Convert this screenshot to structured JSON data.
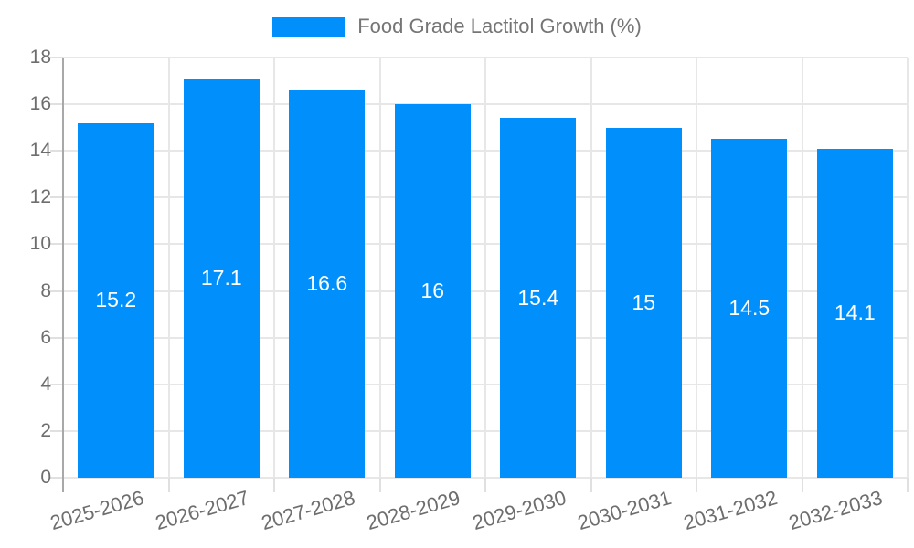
{
  "chart_data": {
    "type": "bar",
    "title": "Food Grade Lactitol Growth (%)",
    "categories": [
      "2025-2026",
      "2026-2027",
      "2027-2028",
      "2028-2029",
      "2029-2030",
      "2030-2031",
      "2031-2032",
      "2032-2033"
    ],
    "series": [
      {
        "name": "Food Grade Lactitol Growth (%)",
        "values": [
          15.2,
          17.1,
          16.6,
          16,
          15.4,
          15,
          14.5,
          14.1
        ]
      }
    ],
    "value_labels": [
      "15.2",
      "17.1",
      "16.6",
      "16",
      "15.4",
      "15",
      "14.5",
      "14.1"
    ],
    "xlabel": "",
    "ylabel": "",
    "ylim": [
      0,
      18
    ],
    "y_ticks": [
      0,
      2,
      4,
      6,
      8,
      10,
      12,
      14,
      16,
      18
    ],
    "grid": true,
    "legend_position": "top",
    "colors": {
      "bar": "#008FFB",
      "grid_line": "#e7e7e7",
      "axis_line": "#a8a8a8",
      "tick_line": "#e0e0e0",
      "axis_label_text": "#6e6e6e",
      "legend_text": "#757575",
      "bar_label_text": "#ffffff"
    }
  }
}
